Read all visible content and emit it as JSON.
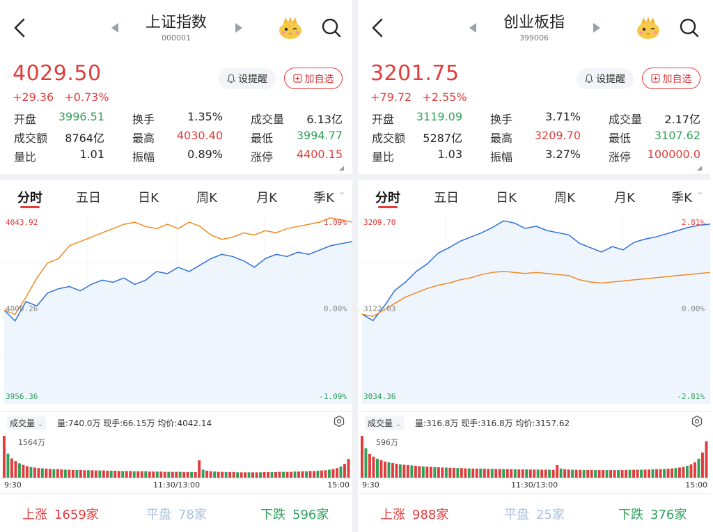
{
  "panels": [
    {
      "name": "上证指数",
      "code": "000001",
      "price": "4029.50",
      "change": "+29.36",
      "change_pct": "+0.73%",
      "alert_label": "设提醒",
      "watch_label": "加自选",
      "stats": [
        [
          {
            "label": "开盘",
            "value": "3996.51",
            "dir": "down"
          },
          {
            "label": "换手",
            "value": "1.35%",
            "dir": ""
          },
          {
            "label": "成交量",
            "value": "6.13亿",
            "dir": ""
          }
        ],
        [
          {
            "label": "成交额",
            "value": "8764亿",
            "dir": ""
          },
          {
            "label": "最高",
            "value": "4030.40",
            "dir": "up"
          },
          {
            "label": "最低",
            "value": "3994.77",
            "dir": "down"
          }
        ],
        [
          {
            "label": "量比",
            "value": "1.01",
            "dir": ""
          },
          {
            "label": "振幅",
            "value": "0.89%",
            "dir": ""
          },
          {
            "label": "涨停",
            "value": "4400.15",
            "dir": "up"
          }
        ]
      ],
      "tabs": [
        "分时",
        "五日",
        "日K",
        "周K",
        "月K",
        "季K"
      ],
      "active_tab": 0,
      "axis": {
        "top": "4043.92",
        "top_pct": "1.09%",
        "mid": "4000.26",
        "mid_pct": "0.00%",
        "bottom": "3956.36",
        "bottom_pct": "-1.09%"
      },
      "volume_dropdown": "成交量",
      "volume_info": "量:740.0万  现手:66.15万  均价:4042.14",
      "volume_max": "1564万",
      "times": [
        "9:30",
        "11:30/13:00",
        "15:00"
      ],
      "breadth": {
        "up_label": "上涨",
        "up": "1659家",
        "flat_label": "平盘",
        "flat": "78家",
        "down_label": "下跌",
        "down": "596家"
      },
      "chart_data": {
        "type": "line",
        "ylim": [
          3956.36,
          4043.92
        ],
        "series": [
          {
            "color": "#2f6fd6",
            "values": [
              4000,
              3995,
              4004,
              4002,
              4008,
              4010,
              4011,
              4009,
              4012,
              4014,
              4013,
              4015,
              4012,
              4014,
              4018,
              4017,
              4020,
              4018,
              4021,
              4024,
              4026,
              4025,
              4023,
              4020,
              4024,
              4026,
              4025,
              4027,
              4026,
              4028,
              4030,
              4031,
              4032
            ]
          },
          {
            "color": "#f08a24",
            "values": [
              4000,
              3998,
              4006,
              4015,
              4022,
              4024,
              4030,
              4032,
              4034,
              4036,
              4038,
              4040,
              4041,
              4039,
              4038,
              4040,
              4038,
              4041,
              4039,
              4035,
              4033,
              4034,
              4036,
              4035,
              4037,
              4036,
              4038,
              4039,
              4040,
              4041,
              4043,
              4042,
              4041
            ]
          }
        ]
      },
      "volume_data": [
        1564,
        900,
        720,
        620,
        540,
        480,
        430,
        400,
        380,
        360,
        350,
        340,
        330,
        320,
        320,
        310,
        300,
        300,
        290,
        290,
        290,
        280,
        280,
        280,
        270,
        270,
        270,
        260,
        260,
        260,
        250,
        250,
        250,
        250,
        240,
        240,
        240,
        240,
        230,
        230,
        230,
        230,
        220,
        220,
        220,
        220,
        220,
        210,
        210,
        210,
        210,
        650,
        300,
        260,
        240,
        230,
        220,
        220,
        210,
        210,
        210,
        200,
        200,
        200,
        200,
        200,
        200,
        200,
        210,
        210,
        210,
        210,
        220,
        220,
        220,
        220,
        230,
        230,
        240,
        240,
        250,
        250,
        260,
        270,
        280,
        300,
        320,
        360,
        420,
        520,
        700
      ]
    },
    {
      "name": "创业板指",
      "code": "399006",
      "price": "3201.75",
      "change": "+79.72",
      "change_pct": "+2.55%",
      "alert_label": "设提醒",
      "watch_label": "加自选",
      "stats": [
        [
          {
            "label": "开盘",
            "value": "3119.09",
            "dir": "down"
          },
          {
            "label": "换手",
            "value": "3.71%",
            "dir": ""
          },
          {
            "label": "成交量",
            "value": "2.17亿",
            "dir": ""
          }
        ],
        [
          {
            "label": "成交额",
            "value": "5287亿",
            "dir": ""
          },
          {
            "label": "最高",
            "value": "3209.70",
            "dir": "up"
          },
          {
            "label": "最低",
            "value": "3107.62",
            "dir": "down"
          }
        ],
        [
          {
            "label": "量比",
            "value": "1.03",
            "dir": ""
          },
          {
            "label": "振幅",
            "value": "3.27%",
            "dir": ""
          },
          {
            "label": "涨停",
            "value": "100000.0",
            "dir": "up"
          }
        ]
      ],
      "tabs": [
        "分时",
        "五日",
        "日K",
        "周K",
        "月K",
        "季K"
      ],
      "active_tab": 0,
      "axis": {
        "top": "3209.70",
        "top_pct": "2.81%",
        "mid": "3122.03",
        "mid_pct": "0.00%",
        "bottom": "3034.36",
        "bottom_pct": "-2.81%"
      },
      "volume_dropdown": "成交量",
      "volume_info": "量:316.8万  现手:316.8万  均价:3157.62",
      "volume_max": "596万",
      "times": [
        "9:30",
        "11:30/13:00",
        "15:00"
      ],
      "breadth": {
        "up_label": "上涨",
        "up": "988家",
        "flat_label": "平盘",
        "flat": "25家",
        "down_label": "下跌",
        "down": "376家"
      },
      "chart_data": {
        "type": "line",
        "ylim": [
          3034.36,
          3209.7
        ],
        "series": [
          {
            "color": "#2f6fd6",
            "values": [
              3118,
              3112,
              3125,
              3140,
              3148,
              3158,
              3165,
              3175,
              3180,
              3186,
              3190,
              3194,
              3199,
              3205,
              3203,
              3198,
              3200,
              3196,
              3194,
              3192,
              3184,
              3180,
              3176,
              3181,
              3178,
              3185,
              3188,
              3190,
              3193,
              3196,
              3199,
              3201,
              3202
            ]
          },
          {
            "color": "#f08a24",
            "values": [
              3118,
              3116,
              3122,
              3128,
              3134,
              3138,
              3142,
              3145,
              3147,
              3150,
              3152,
              3155,
              3157,
              3158,
              3157,
              3156,
              3157,
              3156,
              3155,
              3154,
              3150,
              3148,
              3147,
              3148,
              3149,
              3150,
              3151,
              3152,
              3153,
              3154,
              3155,
              3156,
              3157
            ]
          }
        ]
      },
      "volume_data": [
        596,
        420,
        340,
        300,
        270,
        250,
        230,
        220,
        210,
        200,
        190,
        185,
        180,
        175,
        170,
        165,
        160,
        158,
        155,
        150,
        148,
        146,
        144,
        142,
        140,
        138,
        136,
        134,
        132,
        130,
        130,
        128,
        128,
        126,
        126,
        124,
        124,
        122,
        122,
        120,
        120,
        118,
        118,
        118,
        116,
        116,
        116,
        114,
        114,
        114,
        112,
        180,
        130,
        120,
        116,
        114,
        112,
        112,
        110,
        110,
        110,
        108,
        108,
        108,
        108,
        108,
        108,
        110,
        110,
        110,
        112,
        112,
        114,
        114,
        116,
        116,
        118,
        120,
        122,
        124,
        128,
        132,
        138,
        145,
        155,
        170,
        190,
        220,
        270,
        360,
        520
      ]
    }
  ]
}
